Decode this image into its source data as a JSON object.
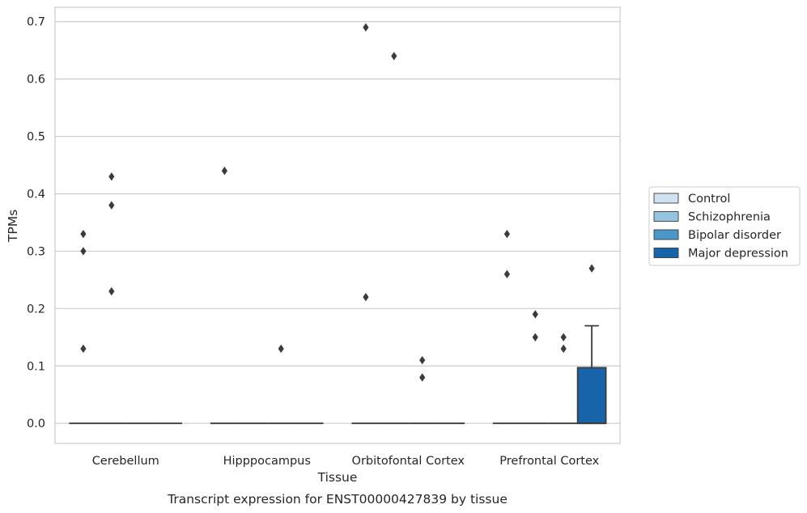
{
  "chart_data": {
    "type": "box",
    "caption": "Transcript expression for ENST00000427839 by tissue",
    "xlabel": "Tissue",
    "ylabel": "TPMs",
    "categories": [
      "Cerebellum",
      "Hipppocampus",
      "Orbitofontal Cortex",
      "Prefrontal Cortex"
    ],
    "ylim": [
      -0.035,
      0.725
    ],
    "yticks": [
      "0.0",
      "0.1",
      "0.2",
      "0.3",
      "0.4",
      "0.5",
      "0.6",
      "0.7"
    ],
    "grid": "horizontal",
    "legend_position": "center right, outside plot",
    "series": [
      {
        "name": "Control",
        "color": "#d0e1f2",
        "boxes": [
          {
            "category": "Cerebellum",
            "q1": 0,
            "median": 0,
            "q3": 0,
            "whisker_low": 0,
            "whisker_high": 0,
            "outliers": [
              0.13,
              0.3,
              0.33
            ]
          },
          {
            "category": "Hipppocampus",
            "q1": 0,
            "median": 0,
            "q3": 0,
            "whisker_low": 0,
            "whisker_high": 0,
            "outliers": [
              0.44
            ]
          },
          {
            "category": "Orbitofontal Cortex",
            "q1": 0,
            "median": 0,
            "q3": 0,
            "whisker_low": 0,
            "whisker_high": 0,
            "outliers": [
              0.22,
              0.69
            ]
          },
          {
            "category": "Prefrontal Cortex",
            "q1": 0,
            "median": 0,
            "q3": 0,
            "whisker_low": 0,
            "whisker_high": 0,
            "outliers": [
              0.26,
              0.33
            ]
          }
        ]
      },
      {
        "name": "Schizophrenia",
        "color": "#94c4df",
        "boxes": [
          {
            "category": "Cerebellum",
            "q1": 0,
            "median": 0,
            "q3": 0,
            "whisker_low": 0,
            "whisker_high": 0,
            "outliers": [
              0.23,
              0.38,
              0.43
            ]
          },
          {
            "category": "Hipppocampus",
            "q1": 0,
            "median": 0,
            "q3": 0,
            "whisker_low": 0,
            "whisker_high": 0,
            "outliers": []
          },
          {
            "category": "Orbitofontal Cortex",
            "q1": 0,
            "median": 0,
            "q3": 0,
            "whisker_low": 0,
            "whisker_high": 0,
            "outliers": [
              0.64
            ]
          },
          {
            "category": "Prefrontal Cortex",
            "q1": 0,
            "median": 0,
            "q3": 0,
            "whisker_low": 0,
            "whisker_high": 0,
            "outliers": [
              0.15,
              0.19
            ]
          }
        ]
      },
      {
        "name": "Bipolar disorder",
        "color": "#4a98c9",
        "boxes": [
          {
            "category": "Cerebellum",
            "q1": 0,
            "median": 0,
            "q3": 0,
            "whisker_low": 0,
            "whisker_high": 0,
            "outliers": []
          },
          {
            "category": "Hipppocampus",
            "q1": 0,
            "median": 0,
            "q3": 0,
            "whisker_low": 0,
            "whisker_high": 0,
            "outliers": [
              0.13
            ]
          },
          {
            "category": "Orbitofontal Cortex",
            "q1": 0,
            "median": 0,
            "q3": 0,
            "whisker_low": 0,
            "whisker_high": 0,
            "outliers": [
              0.08,
              0.11
            ]
          },
          {
            "category": "Prefrontal Cortex",
            "q1": 0,
            "median": 0,
            "q3": 0,
            "whisker_low": 0,
            "whisker_high": 0,
            "outliers": [
              0.13,
              0.15
            ]
          }
        ]
      },
      {
        "name": "Major depression",
        "color": "#1764ab",
        "boxes": [
          {
            "category": "Cerebellum",
            "q1": 0,
            "median": 0,
            "q3": 0,
            "whisker_low": 0,
            "whisker_high": 0,
            "outliers": []
          },
          {
            "category": "Hipppocampus",
            "q1": 0,
            "median": 0,
            "q3": 0,
            "whisker_low": 0,
            "whisker_high": 0,
            "outliers": []
          },
          {
            "category": "Orbitofontal Cortex",
            "q1": 0,
            "median": 0,
            "q3": 0,
            "whisker_low": 0,
            "whisker_high": 0,
            "outliers": []
          },
          {
            "category": "Prefrontal Cortex",
            "q1": 0,
            "median": 0,
            "q3": 0.097,
            "whisker_low": 0,
            "whisker_high": 0.17,
            "outliers": [
              0.27
            ]
          }
        ]
      }
    ]
  }
}
